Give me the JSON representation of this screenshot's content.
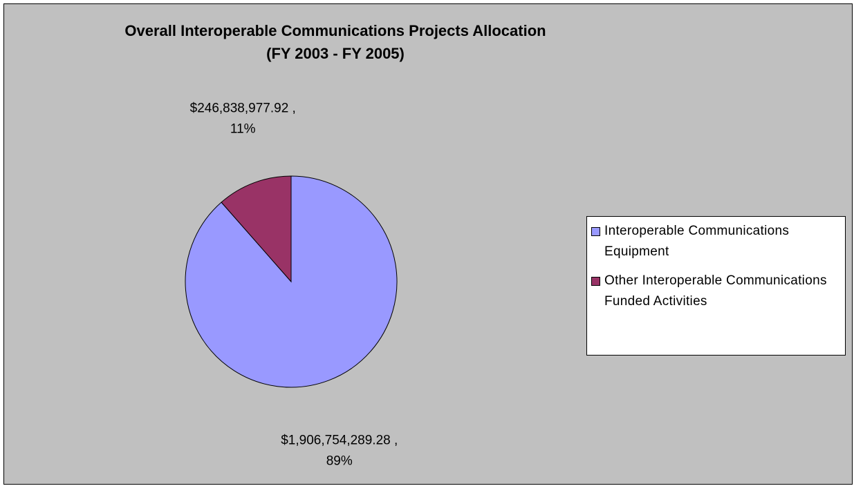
{
  "chart_data": {
    "type": "pie",
    "title": [
      "Overall Interoperable Communications Projects Allocation",
      "(FY 2003 - FY 2005)"
    ],
    "categories": [
      "Interoperable Communications Equipment",
      "Other Interoperable Communications Funded Activities"
    ],
    "values": [
      1906754289.28,
      246838977.92
    ],
    "value_labels": [
      [
        "$1,906,754,289.28 ,",
        "89%"
      ],
      [
        "$246,838,977.92 ,",
        "11%"
      ]
    ],
    "colors": [
      "#9999ff",
      "#993366"
    ],
    "legend": "right"
  }
}
